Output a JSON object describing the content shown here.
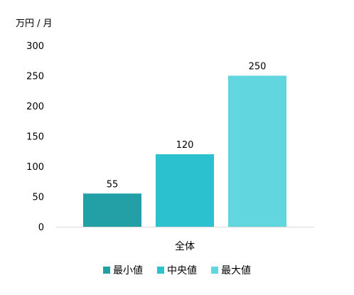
{
  "chart_data": {
    "type": "bar",
    "unit_label": "万円 / 月",
    "categories": [
      "全体"
    ],
    "series": [
      {
        "name": "最小値",
        "values": [
          55
        ],
        "color": "#22A0A6"
      },
      {
        "name": "中央値",
        "values": [
          120
        ],
        "color": "#2CC1CF"
      },
      {
        "name": "最大値",
        "values": [
          250
        ],
        "color": "#61D6DF"
      }
    ],
    "y_ticks": [
      "0",
      "50",
      "100",
      "150",
      "200",
      "250",
      "300"
    ],
    "ylim": [
      0,
      300
    ],
    "data_labels": [
      "55",
      "120",
      "250"
    ],
    "grid": false,
    "legend_position": "bottom"
  }
}
